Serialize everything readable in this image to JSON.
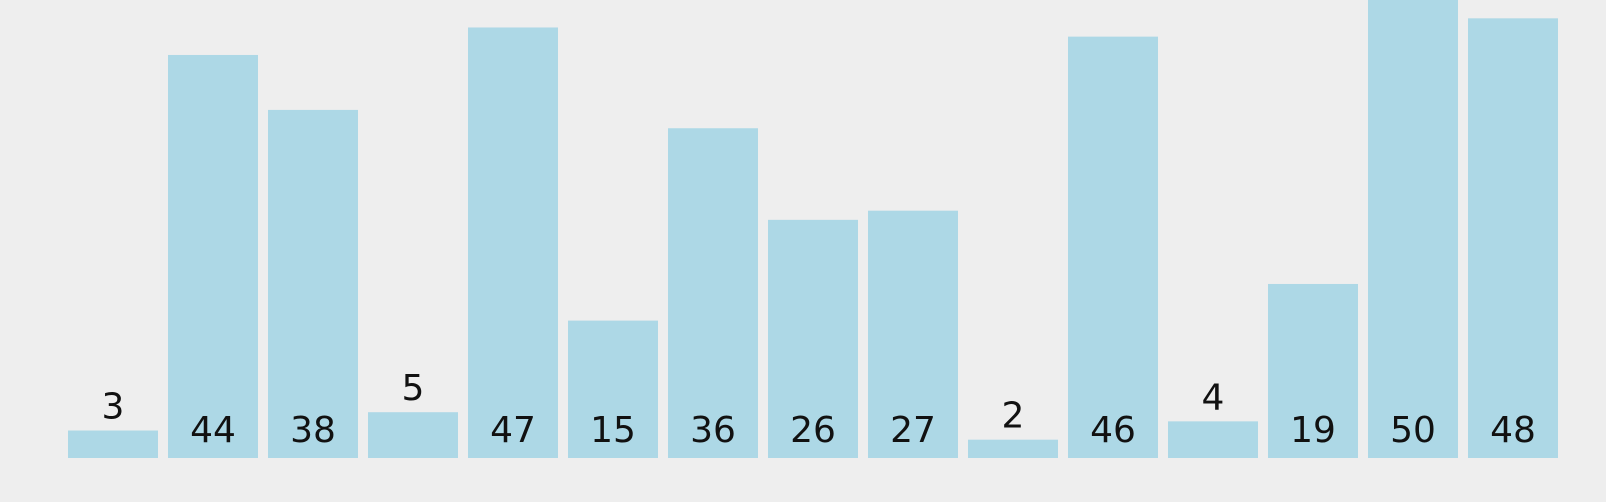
{
  "colors": {
    "background": "#eeeeee",
    "bar": "#add8e6",
    "label": "#111111"
  },
  "chart_data": {
    "type": "bar",
    "categories": [
      "3",
      "44",
      "38",
      "5",
      "47",
      "15",
      "36",
      "26",
      "27",
      "2",
      "46",
      "4",
      "19",
      "50",
      "48"
    ],
    "values": [
      3,
      44,
      38,
      5,
      47,
      15,
      36,
      26,
      27,
      2,
      46,
      4,
      19,
      50,
      48
    ],
    "title": "",
    "xlabel": "",
    "ylabel": "",
    "ylim": [
      0,
      50
    ],
    "grid": false,
    "axes_visible": false,
    "legend": "none",
    "data_labels": "inside-bottom for tall bars, above bar for short bars"
  }
}
